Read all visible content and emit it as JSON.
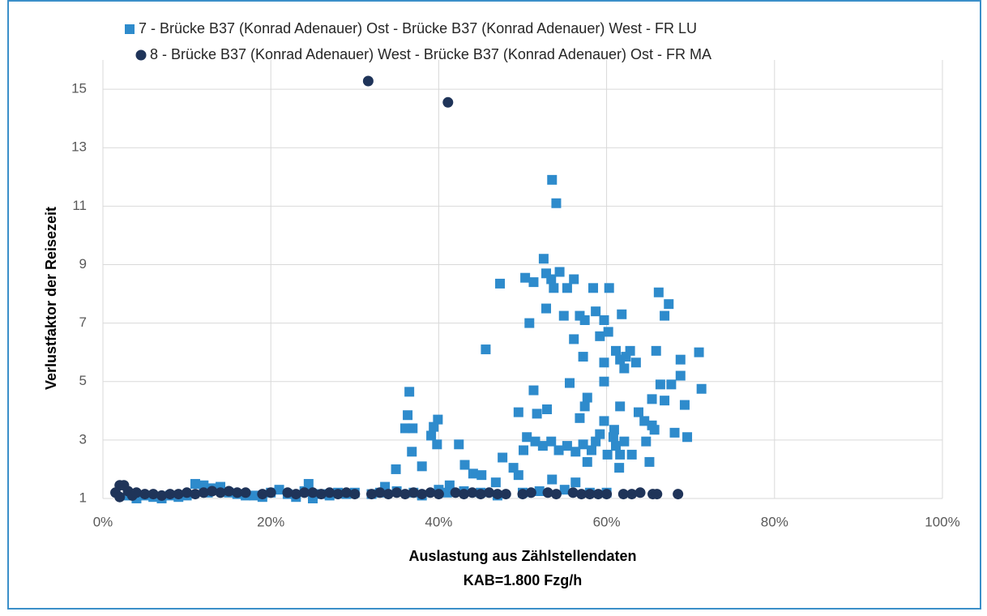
{
  "chart_data": {
    "type": "scatter",
    "ylabel": "Verlustfaktor der Reisezeit",
    "xlabel": [
      "Auslastung aus Zählstellendaten",
      "KAB=1.800 Fzg/h"
    ],
    "xlim": [
      0,
      100
    ],
    "xticks": [
      {
        "value": 0,
        "label": "0%"
      },
      {
        "value": 20,
        "label": "20%"
      },
      {
        "value": 40,
        "label": "40%"
      },
      {
        "value": 60,
        "label": "60%"
      },
      {
        "value": 80,
        "label": "80%"
      },
      {
        "value": 100,
        "label": "100%"
      }
    ],
    "ylim": [
      1,
      16
    ],
    "yticks": [
      1,
      3,
      5,
      7,
      9,
      11,
      13,
      15
    ],
    "grid": true,
    "legend": "top",
    "series": [
      {
        "name": "7 - Brücke B37 (Konrad Adenauer) Ost - Brücke B37 (Konrad Adenauer) West - FR LU",
        "color": "#2e8bcc",
        "marker": "square",
        "x": [
          53.5,
          54.0,
          52.5,
          47.3,
          50.3,
          51.3,
          52.8,
          54.4,
          53.4,
          53.7,
          55.3,
          56.1,
          58.4,
          60.3,
          52.8,
          54.9,
          56.8,
          58.7,
          57.4,
          59.7,
          61.8,
          67.4,
          66.9,
          50.8,
          66.2,
          59.2,
          60.2,
          56.1,
          45.6,
          57.2,
          61.1,
          62.8,
          65.9,
          71.0,
          68.8,
          59.7,
          61.6,
          63.5,
          62.3,
          62.1,
          59.7,
          55.6,
          66.4,
          67.7,
          68.8,
          71.3,
          65.4,
          57.7,
          66.9,
          51.3,
          36.5,
          61.6,
          57.4,
          69.3,
          49.5,
          52.9,
          36.3,
          51.7,
          39.9,
          63.8,
          56.8,
          64.5,
          39.4,
          36.9,
          36.0,
          39.1,
          59.7,
          59.2,
          60.9,
          65.7,
          65.4,
          68.1,
          69.6,
          50.5,
          51.5,
          52.4,
          53.4,
          54.3,
          55.3,
          56.3,
          57.2,
          58.2,
          58.7,
          60.1,
          61.1,
          62.1,
          63.0,
          60.8,
          57.7,
          61.6,
          64.7,
          65.1,
          39.8,
          42.4,
          36.8,
          50.1,
          43.1,
          34.9,
          38.0,
          47.6,
          48.9,
          44.1,
          45.1,
          49.5,
          61.5,
          53.5,
          46.8,
          56.3,
          41.3,
          33.6,
          3,
          4,
          5,
          6,
          7,
          8,
          9,
          10,
          11,
          12,
          12.5,
          13,
          14,
          15,
          16,
          17,
          18,
          19,
          20,
          21,
          22,
          23,
          24,
          24.5,
          25,
          26,
          27,
          28,
          29,
          30,
          32,
          33,
          35,
          37,
          38,
          40,
          41,
          43,
          45,
          47,
          50,
          52,
          55,
          58,
          60
        ],
        "values": [
          11.9,
          11.1,
          9.2,
          8.35,
          8.55,
          8.4,
          8.7,
          8.75,
          8.5,
          8.2,
          8.2,
          8.5,
          8.2,
          8.2,
          7.5,
          7.25,
          7.25,
          7.4,
          7.1,
          7.1,
          7.3,
          7.65,
          7.25,
          7.0,
          8.05,
          6.55,
          6.7,
          6.45,
          6.1,
          5.85,
          6.05,
          6.05,
          6.05,
          6.0,
          5.75,
          5.65,
          5.75,
          5.65,
          5.85,
          5.45,
          5.0,
          4.95,
          4.9,
          4.9,
          5.2,
          4.75,
          4.4,
          4.45,
          4.35,
          4.7,
          4.65,
          4.15,
          4.15,
          4.2,
          3.95,
          4.05,
          3.85,
          3.9,
          3.7,
          3.95,
          3.75,
          3.65,
          3.45,
          3.4,
          3.4,
          3.15,
          3.65,
          3.2,
          3.35,
          3.35,
          3.5,
          3.25,
          3.1,
          3.1,
          2.95,
          2.8,
          2.95,
          2.65,
          2.8,
          2.6,
          2.85,
          2.65,
          2.95,
          2.5,
          2.8,
          2.95,
          2.5,
          3.1,
          2.25,
          2.5,
          2.95,
          2.25,
          2.85,
          2.85,
          2.6,
          2.65,
          2.15,
          2.0,
          2.1,
          2.4,
          2.05,
          1.85,
          1.8,
          1.8,
          2.05,
          1.65,
          1.55,
          1.55,
          1.45,
          1.4,
          1.1,
          1.0,
          1.1,
          1.05,
          1.0,
          1.1,
          1.05,
          1.1,
          1.5,
          1.45,
          1.2,
          1.35,
          1.4,
          1.2,
          1.15,
          1.1,
          1.1,
          1.05,
          1.2,
          1.3,
          1.15,
          1.05,
          1.25,
          1.5,
          1.0,
          1.15,
          1.1,
          1.2,
          1.15,
          1.2,
          1.15,
          1.2,
          1.25,
          1.2,
          1.1,
          1.3,
          1.2,
          1.25,
          1.2,
          1.1,
          1.2,
          1.25,
          1.3,
          1.2,
          1.2
        ]
      },
      {
        "name": "8 - Brücke B37 (Konrad Adenauer) West - Brücke B37 (Konrad Adenauer) Ost - FR MA",
        "color": "#1f3459",
        "marker": "circle",
        "x": [
          31.6,
          41.1,
          2,
          2.5,
          3,
          3.5,
          4,
          5,
          6,
          7,
          8,
          9,
          10,
          11,
          12,
          13,
          14,
          15,
          16,
          17,
          19,
          20,
          22,
          23,
          24,
          25,
          26,
          27,
          28,
          29,
          30,
          32,
          33,
          34,
          35,
          36,
          37,
          38,
          39,
          40,
          42,
          43,
          44,
          45,
          46,
          47,
          48,
          50,
          51,
          53,
          54,
          56,
          57,
          58,
          59,
          60,
          62,
          63,
          64,
          65.5,
          66,
          68.5,
          1.5,
          2
        ],
        "values": [
          15.28,
          14.55,
          1.45,
          1.45,
          1.25,
          1.1,
          1.2,
          1.15,
          1.15,
          1.1,
          1.15,
          1.15,
          1.2,
          1.15,
          1.2,
          1.25,
          1.2,
          1.25,
          1.2,
          1.2,
          1.15,
          1.2,
          1.2,
          1.15,
          1.2,
          1.2,
          1.15,
          1.2,
          1.15,
          1.2,
          1.15,
          1.15,
          1.2,
          1.15,
          1.2,
          1.15,
          1.2,
          1.15,
          1.2,
          1.15,
          1.2,
          1.15,
          1.2,
          1.15,
          1.2,
          1.15,
          1.15,
          1.15,
          1.2,
          1.2,
          1.15,
          1.2,
          1.15,
          1.15,
          1.15,
          1.15,
          1.15,
          1.15,
          1.2,
          1.15,
          1.15,
          1.15,
          1.2,
          1.05
        ]
      }
    ]
  }
}
